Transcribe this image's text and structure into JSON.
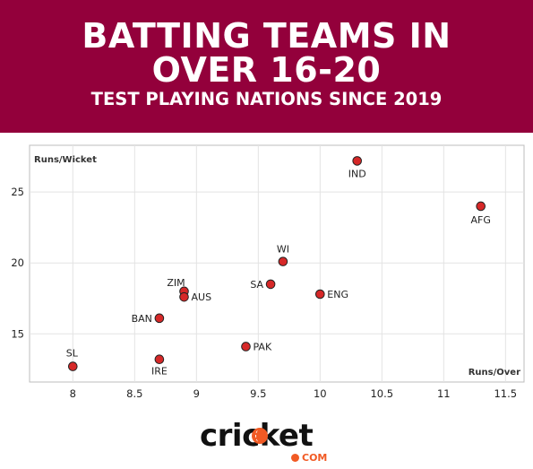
{
  "header": {
    "title_line1": "BATTING TEAMS IN",
    "title_line2": "OVER 16-20",
    "subtitle": "TEST PLAYING NATIONS SINCE 2019",
    "background_color": "#93003b"
  },
  "chart_data": {
    "type": "scatter",
    "title": "BATTING TEAMS IN OVER 16-20",
    "subtitle": "TEST PLAYING NATIONS SINCE 2019",
    "xlabel": "Runs/Over",
    "ylabel": "Runs/Wicket",
    "xlim": [
      7.65,
      11.65
    ],
    "ylim": [
      11.6,
      28.3
    ],
    "xticks": [
      "8",
      "8.5",
      "9",
      "9.5",
      "10",
      "10.5",
      "11",
      "11.5"
    ],
    "yticks": [
      "15",
      "20",
      "25"
    ],
    "grid": true,
    "marker_color": "#d62828",
    "points": [
      {
        "label": "IND",
        "x": 10.3,
        "y": 27.2
      },
      {
        "label": "AFG",
        "x": 11.3,
        "y": 24.0
      },
      {
        "label": "WI",
        "x": 9.7,
        "y": 20.1
      },
      {
        "label": "SA",
        "x": 9.6,
        "y": 18.5
      },
      {
        "label": "ENG",
        "x": 10.0,
        "y": 17.8
      },
      {
        "label": "ZIM",
        "x": 8.9,
        "y": 18.0
      },
      {
        "label": "AUS",
        "x": 8.9,
        "y": 17.6
      },
      {
        "label": "BAN",
        "x": 8.7,
        "y": 16.1
      },
      {
        "label": "PAK",
        "x": 9.4,
        "y": 14.1
      },
      {
        "label": "SL",
        "x": 8.0,
        "y": 12.7
      },
      {
        "label": "IRE",
        "x": 8.7,
        "y": 13.2
      }
    ]
  },
  "logo": {
    "text": "cricket",
    "domain": "COM",
    "accent_color": "#f15a24"
  }
}
